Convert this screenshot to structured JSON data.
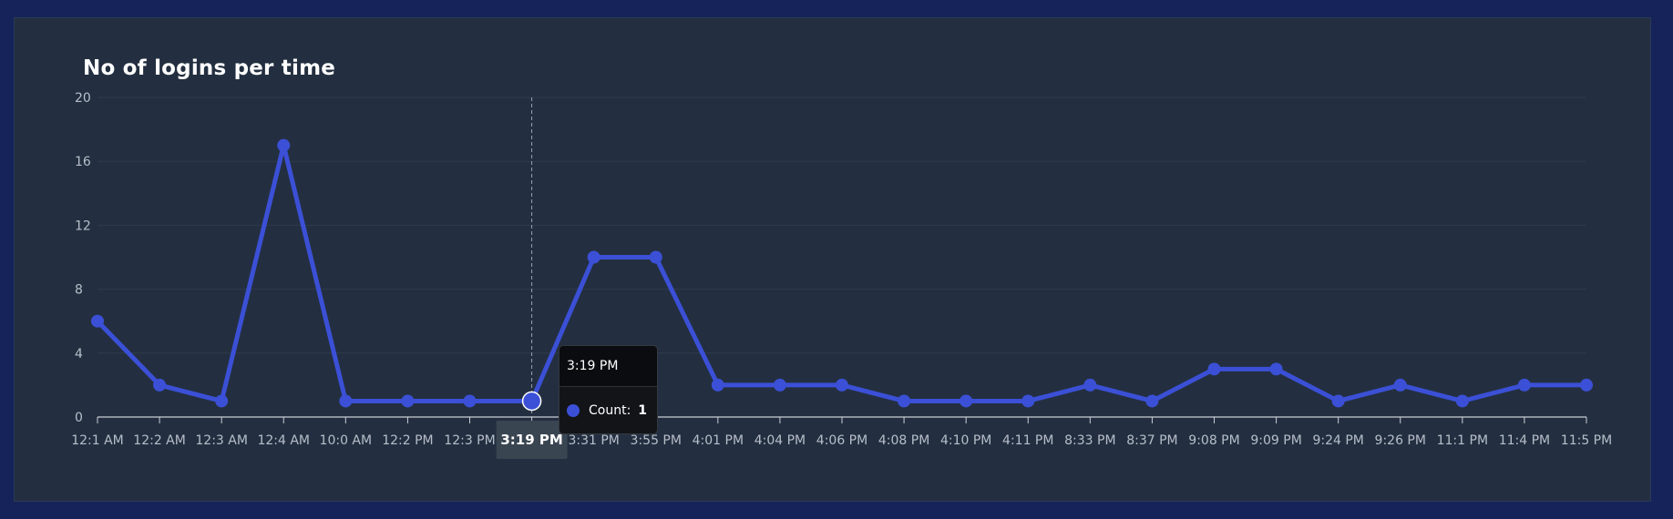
{
  "chart_data": {
    "type": "line",
    "title": "No of logins per time",
    "xlabel": "",
    "ylabel": "",
    "ylim": [
      0,
      20
    ],
    "yticks": [
      0,
      4,
      8,
      12,
      16,
      20
    ],
    "categories": [
      "12:1 AM",
      "12:2 AM",
      "12:3 AM",
      "12:4 AM",
      "10:0 AM",
      "12:2 PM",
      "12:3 PM",
      "3:19 PM",
      "3:31 PM",
      "3:55 PM",
      "4:01 PM",
      "4:04 PM",
      "4:06 PM",
      "4:08 PM",
      "4:10 PM",
      "4:11 PM",
      "8:33 PM",
      "8:37 PM",
      "9:08 PM",
      "9:09 PM",
      "9:24 PM",
      "9:26 PM",
      "11:1 PM",
      "11:4 PM",
      "11:5 PM"
    ],
    "series": [
      {
        "name": "Count",
        "values": [
          6,
          2,
          1,
          17,
          1,
          1,
          1,
          1,
          10,
          10,
          2,
          2,
          2,
          1,
          1,
          1,
          2,
          1,
          3,
          3,
          1,
          2,
          1,
          2,
          2
        ],
        "color": "#3b50d6"
      }
    ],
    "active_index": 7
  },
  "tooltip": {
    "label": "3:19 PM",
    "series_label": "Count:",
    "value": "1"
  },
  "colors": {
    "background": "#16235a",
    "panel": "#232f40",
    "series": "#3b50d6",
    "grid": "#2f3b4d",
    "tick_text": "#b7bec9",
    "active_tick_bg": "#3a4552"
  }
}
